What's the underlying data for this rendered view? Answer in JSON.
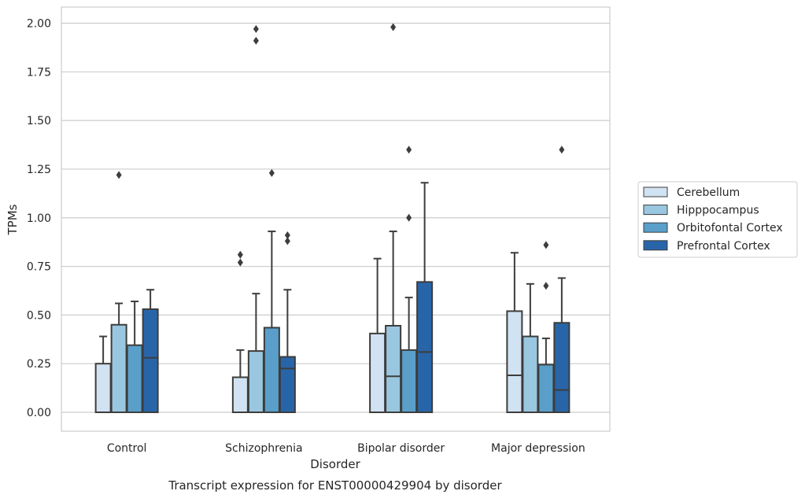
{
  "chart_data": {
    "type": "box",
    "title": "",
    "caption": "Transcript expression for ENST00000429904 by disorder",
    "xlabel": "Disorder",
    "ylabel": "TPMs",
    "ylim": [
      -0.1,
      2.08
    ],
    "yticks": [
      0.0,
      0.25,
      0.5,
      0.75,
      1.0,
      1.25,
      1.5,
      1.75,
      2.0
    ],
    "ytick_labels": [
      "0.00",
      "0.25",
      "0.50",
      "0.75",
      "1.00",
      "1.25",
      "1.50",
      "1.75",
      "2.00"
    ],
    "grid": "horizontal",
    "legend_position": "right",
    "categories": [
      "Control",
      "Schizophrenia",
      "Bipolar disorder",
      "Major depression"
    ],
    "colors": [
      "#d1e2f2",
      "#9ac7e0",
      "#5a9fca",
      "#2865a8"
    ],
    "series": [
      {
        "name": "Cerebellum",
        "boxes": [
          {
            "whislo": 0.0,
            "q1": 0.0,
            "med": 0.0,
            "q3": 0.25,
            "whishi": 0.39,
            "fliers": []
          },
          {
            "whislo": 0.0,
            "q1": 0.0,
            "med": 0.0,
            "q3": 0.18,
            "whishi": 0.32,
            "fliers": [
              0.77,
              0.81
            ]
          },
          {
            "whislo": 0.0,
            "q1": 0.0,
            "med": 0.0,
            "q3": 0.405,
            "whishi": 0.79,
            "fliers": []
          },
          {
            "whislo": 0.0,
            "q1": 0.0,
            "med": 0.19,
            "q3": 0.52,
            "whishi": 0.82,
            "fliers": []
          }
        ]
      },
      {
        "name": "Hipppocampus",
        "boxes": [
          {
            "whislo": 0.0,
            "q1": 0.0,
            "med": 0.0,
            "q3": 0.45,
            "whishi": 0.56,
            "fliers": [
              1.22
            ]
          },
          {
            "whislo": 0.0,
            "q1": 0.0,
            "med": 0.0,
            "q3": 0.315,
            "whishi": 0.61,
            "fliers": [
              1.91,
              1.97
            ]
          },
          {
            "whislo": 0.0,
            "q1": 0.0,
            "med": 0.185,
            "q3": 0.445,
            "whishi": 0.93,
            "fliers": [
              1.98
            ]
          },
          {
            "whislo": 0.0,
            "q1": 0.0,
            "med": 0.0,
            "q3": 0.39,
            "whishi": 0.66,
            "fliers": []
          }
        ]
      },
      {
        "name": "Orbitofontal Cortex",
        "boxes": [
          {
            "whislo": 0.0,
            "q1": 0.0,
            "med": 0.0,
            "q3": 0.345,
            "whishi": 0.57,
            "fliers": []
          },
          {
            "whislo": 0.0,
            "q1": 0.0,
            "med": 0.0,
            "q3": 0.435,
            "whishi": 0.93,
            "fliers": [
              1.23
            ]
          },
          {
            "whislo": 0.0,
            "q1": 0.0,
            "med": 0.0,
            "q3": 0.32,
            "whishi": 0.59,
            "fliers": [
              1.0,
              1.35
            ]
          },
          {
            "whislo": 0.0,
            "q1": 0.0,
            "med": 0.0,
            "q3": 0.245,
            "whishi": 0.38,
            "fliers": [
              0.65,
              0.86
            ]
          }
        ]
      },
      {
        "name": "Prefrontal Cortex",
        "boxes": [
          {
            "whislo": 0.0,
            "q1": 0.0,
            "med": 0.28,
            "q3": 0.53,
            "whishi": 0.63,
            "fliers": []
          },
          {
            "whislo": 0.0,
            "q1": 0.0,
            "med": 0.225,
            "q3": 0.285,
            "whishi": 0.63,
            "fliers": [
              0.88,
              0.91
            ]
          },
          {
            "whislo": 0.0,
            "q1": 0.0,
            "med": 0.31,
            "q3": 0.67,
            "whishi": 1.18,
            "fliers": []
          },
          {
            "whislo": 0.0,
            "q1": 0.0,
            "med": 0.115,
            "q3": 0.46,
            "whishi": 0.69,
            "fliers": [
              1.35
            ]
          }
        ]
      }
    ]
  }
}
